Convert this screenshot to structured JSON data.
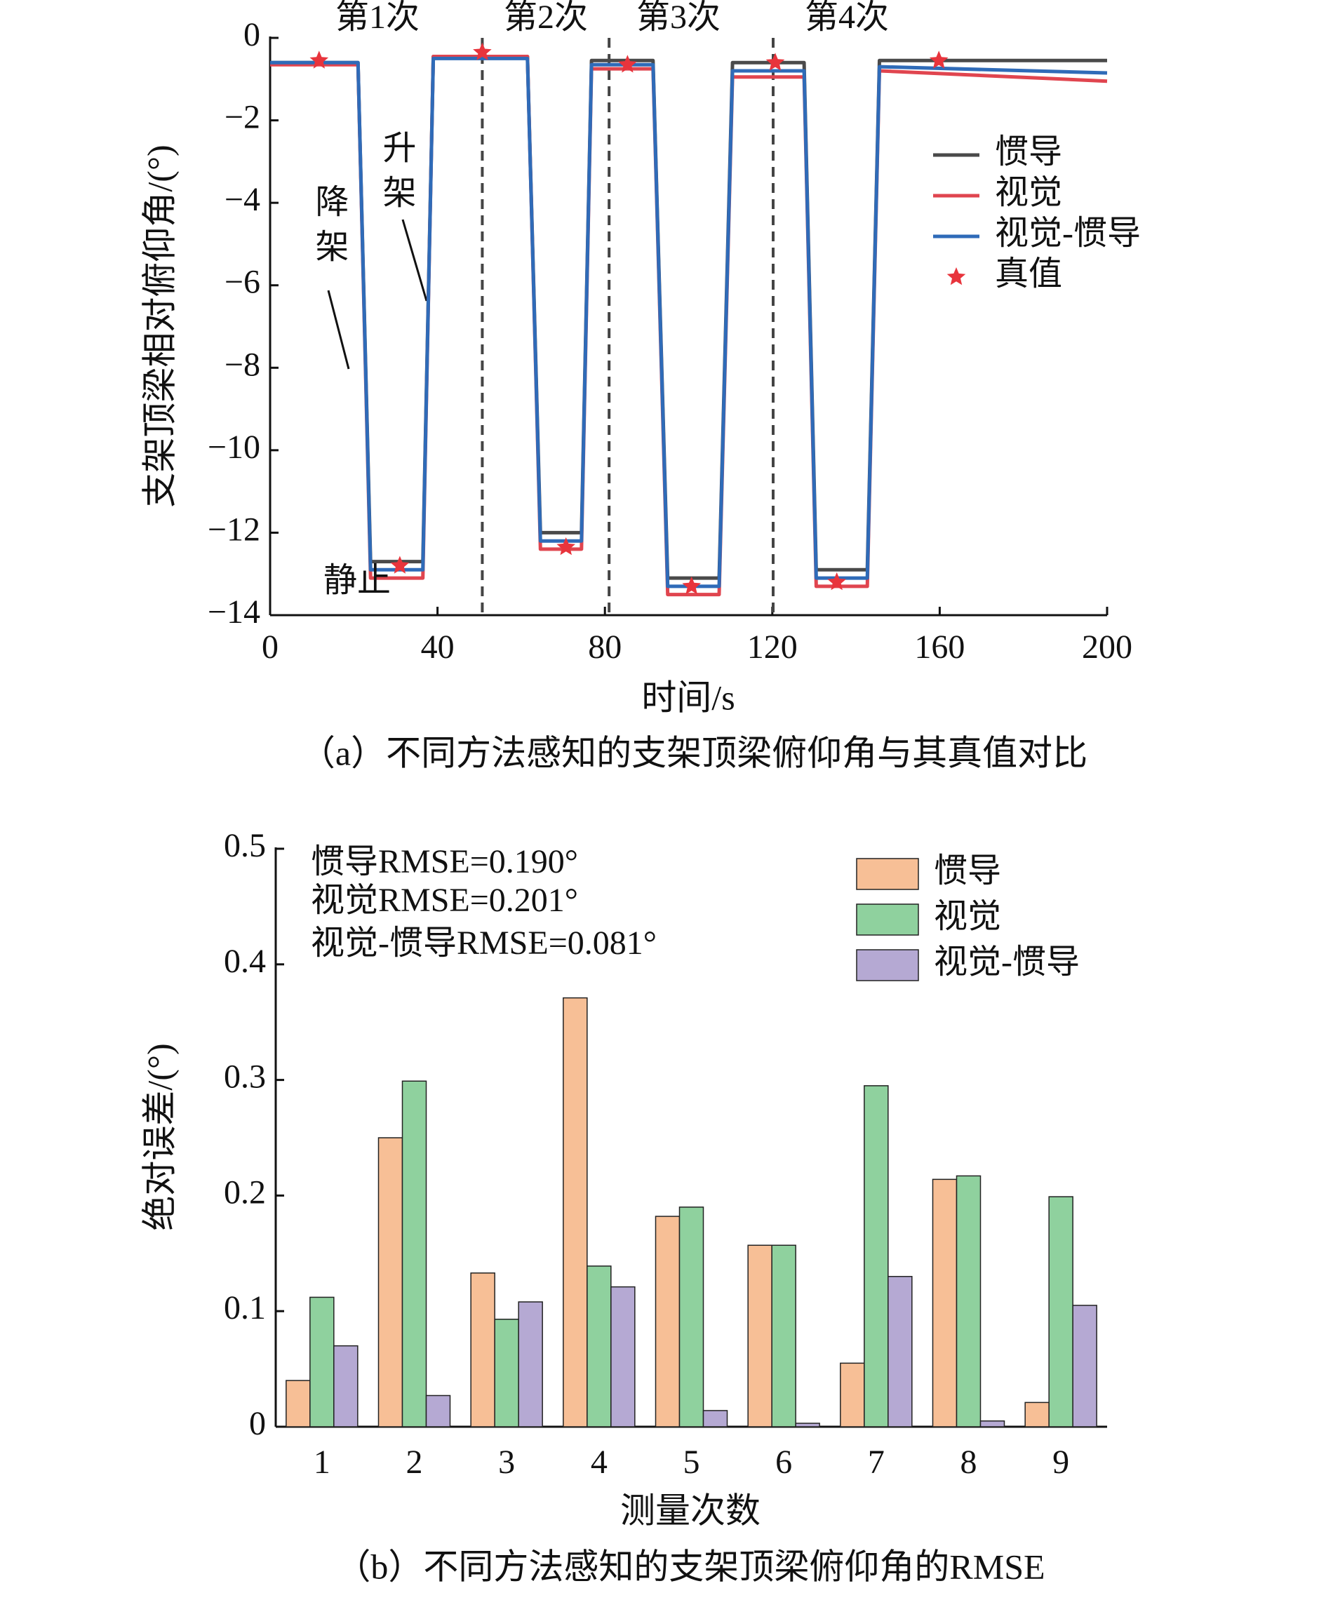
{
  "chart_data": [
    {
      "type": "line",
      "caption": "（a）不同方法感知的支架顶梁俯仰角与其真值对比",
      "xlabel": "时间/s",
      "ylabel": "支架顶梁相对俯仰角/(°)",
      "xlim": [
        0,
        200
      ],
      "xticks": [
        0,
        40,
        80,
        120,
        160,
        200
      ],
      "ylim": [
        -14,
        0
      ],
      "yticks": [
        {
          "value": -14,
          "label": "−14"
        },
        {
          "value": -12,
          "label": "−12"
        },
        {
          "value": -10,
          "label": "−10"
        },
        {
          "value": -8,
          "label": "−8"
        },
        {
          "value": -6,
          "label": "−6"
        },
        {
          "value": -4,
          "label": "−4"
        },
        {
          "value": -2,
          "label": "−2"
        },
        0
      ],
      "x": [
        0,
        21,
        24,
        36.5,
        39,
        61.5,
        64.6,
        74.4,
        76.8,
        91.5,
        95,
        107.3,
        110.5,
        127.6,
        130.5,
        142.7,
        145.6,
        200
      ],
      "series": [
        {
          "name": "惯导",
          "color": "#4a4a4a",
          "values": [
            -0.6,
            -0.6,
            -12.7,
            -12.7,
            -0.45,
            -0.45,
            -12.0,
            -12.0,
            -0.55,
            -0.55,
            -13.1,
            -13.1,
            -0.6,
            -0.6,
            -12.9,
            -12.9,
            -0.55,
            -0.55
          ]
        },
        {
          "name": "视觉",
          "color": "#e0454f",
          "values": [
            -0.65,
            -0.65,
            -13.1,
            -13.1,
            -0.45,
            -0.45,
            -12.4,
            -12.4,
            -0.75,
            -0.75,
            -13.5,
            -13.5,
            -0.95,
            -0.95,
            -13.3,
            -13.3,
            -0.8,
            -1.05
          ]
        },
        {
          "name": "视觉-惯导",
          "color": "#2f6bb8",
          "values": [
            -0.6,
            -0.6,
            -12.9,
            -12.9,
            -0.5,
            -0.5,
            -12.2,
            -12.2,
            -0.65,
            -0.65,
            -13.3,
            -13.3,
            -0.8,
            -0.8,
            -13.1,
            -13.1,
            -0.7,
            -0.85
          ]
        },
        {
          "name": "真值",
          "color": "#e8343c",
          "marker": "star",
          "x": [
            11.7,
            31,
            50.7,
            70.7,
            85.4,
            100.7,
            120.7,
            135.4,
            159.8
          ],
          "values": [
            -0.55,
            -12.8,
            -0.35,
            -12.35,
            -0.65,
            -13.3,
            -0.6,
            -13.2,
            -0.55
          ]
        }
      ],
      "vlines": [
        50.7,
        81,
        120.2
      ],
      "annotations": [
        "第1次",
        "第2次",
        "第3次",
        "第4次",
        "降架",
        "升架",
        "静止"
      ],
      "legend": "upper right"
    },
    {
      "type": "bar",
      "caption": "（b）不同方法感知的支架顶梁俯仰角的RMSE",
      "xlabel": "测量次数",
      "ylabel": "绝对误差/(°)",
      "categories": [
        "1",
        "2",
        "3",
        "4",
        "5",
        "6",
        "7",
        "8",
        "9"
      ],
      "ylim": [
        0,
        0.5
      ],
      "yticks": [
        0,
        0.1,
        0.2,
        0.3,
        0.4,
        0.5
      ],
      "series": [
        {
          "name": "惯导",
          "color": "#f7bf96",
          "values": [
            0.04,
            0.25,
            0.133,
            0.371,
            0.182,
            0.157,
            0.055,
            0.214,
            0.021
          ]
        },
        {
          "name": "视觉",
          "color": "#8fd19e",
          "values": [
            0.112,
            0.299,
            0.093,
            0.139,
            0.19,
            0.157,
            0.295,
            0.217,
            0.199
          ]
        },
        {
          "name": "视觉-惯导",
          "color": "#b5a9d3",
          "values": [
            0.07,
            0.027,
            0.108,
            0.121,
            0.014,
            0.003,
            0.13,
            0.005,
            0.105
          ]
        }
      ],
      "annotations": [
        "惯导RMSE=0.190°",
        "视觉RMSE=0.201°",
        "视觉-惯导RMSE=0.081°"
      ],
      "legend": "upper right"
    }
  ]
}
